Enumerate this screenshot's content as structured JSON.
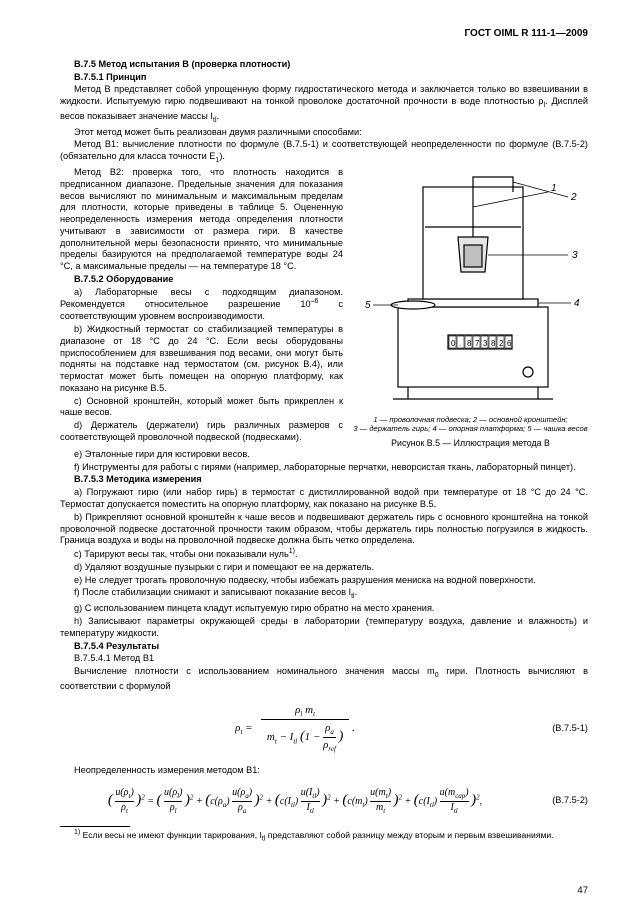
{
  "header": "ГОСТ OIML R 111-1—2009",
  "s1_title": "В.7.5 Метод испытания В (проверка плотности)",
  "s1_1_title": "В.7.5.1 Принцип",
  "p1": "Метод В представляет собой упрощенную форму гидростатического метода и заключается только во взвешивании в жидкости. Испытуемую гирю подвешивают на тонкой проволоке достаточной прочности в воде плотностью ρ",
  "p1_sub": "l",
  "p1_tail": ". Дисплей весов показывает значение массы I",
  "p1_sub2": "tl",
  "p1_end": ".",
  "p2": "Этот метод может быть реализован двумя различными способами:",
  "p3a": "Метод В1: вычисление плотности по формуле (В.7.5-1) и соответствующей неопределенности по формуле (В.7.5-2) (обязательно для класса точности E",
  "p3b": "1",
  "p3c": ").",
  "col_p1": "Метод В2: проверка того, что плотность находится в предписанном диапазоне. Предельные значения для показания весов вычисляют по минимальным и максимальным пределам для плотности, которые приведены в таблице 5. Оцененную неопределенность измерения метода определения плотности учитывают в зависимости от размера гири. В качестве дополнительной меры безопасности принято, что минимальные пределы базируются на предполагаемой температуре воды 24 °С, а максимальные пределы — на температуре 18 °С.",
  "s1_2_title": "В.7.5.2 Оборудование",
  "eq_a": "a) Лабораторные весы с подходящим диапазоном. Рекомендуется относительное разрешение 10",
  "eq_a_sup": "–6",
  "eq_a_tail": " с соответствующим уровнем воспроизводимости.",
  "eq_b": "b) Жидкостный термостат со стабилизацией температуры в диапазоне от 18 °С до 24 °С. Если весы оборудованы приспособлением для взвешивания под весами, они могут быть подняты на подставке над термостатом (см. рисунок В.4), или термостат может быть помещен на опорную платформу, как показано на рисунке В.5.",
  "eq_c": "c) Основной кронштейн, который может быть прикреплен к чаше весов.",
  "eq_d": "d) Держатель (держатели) гирь различных размеров с соответствующей проволочной подвеской (подвесками).",
  "eq_e": "e) Эталонные гири для юстировки весов.",
  "eq_f": "f) Инструменты для работы с гирями (например, лабораторные перчатки, неворсистая ткань, лабораторный пинцет).",
  "s1_3_title": "В.7.5.3 Методика измерения",
  "m_a": "a) Погружают гирю (или набор гирь) в термостат с дистиллированной водой при температуре от 18 °С до 24 °С. Термостат допускается поместить на опорную платформу, как показано на рисунке В.5.",
  "m_b": "b) Прикрепляют основной кронштейн к чаше весов и подвешивают держатель гирь с основного кронштейна на тонкой проволочной подвеске достаточной прочности таким образом, чтобы держатель гирь полностью погрузился в жидкость. Граница воздуха и воды на проволочной подвеске должна быть четко определена.",
  "m_c": "c) Тарируют весы так, чтобы они показывали нуль",
  "m_c_sup": "1)",
  "m_c_end": ".",
  "m_d": "d) Удаляют воздушные пузырьки с гири и помещают ее на держатель.",
  "m_e": "e) Не следует трогать проволочную подвеску, чтобы избежать разрушения мениска на водной поверхности.",
  "m_f": "f) После стабилизации снимают и записывают показание весов I",
  "m_f_sub": "tl",
  "m_f_end": ".",
  "m_g": "g) С использованием пинцета кладут испытуемую гирю обратно на место хранения.",
  "m_h": "h) Записывают параметры окружающей среды в лаборатории (температуру воздуха, давление и влажность) и температуру жидкости.",
  "s1_4_title": "В.7.5.4 Результаты",
  "s1_4_1_title": "В.7.5.4.1 Метод В1",
  "res_p": "Вычисление плотности с использованием номинального значения массы m",
  "res_sub": "0",
  "res_tail": " гири. Плотность вычисляют в соответствии с формулой",
  "formula1_num": "(В.7.5-1)",
  "uncert": "Неопределенность измерения методом В1:",
  "formula2_num": "(В.7.5-2)",
  "footnote_mark": "1)",
  "footnote_text": " Если весы не имеют функции тарирования, I",
  "footnote_sub": "tl",
  "footnote_tail": " представляют собой разницу между вторым и первым взвешиваниями.",
  "pagenum": "47",
  "fig": {
    "labels": {
      "n1": "1",
      "n2": "2",
      "n3": "3",
      "n4": "4",
      "n5": "5"
    },
    "display_digits": [
      "0",
      ".",
      "8",
      "7",
      "3",
      "8",
      "2",
      "6"
    ],
    "legend_line1": "1 — проволочная подвеска; 2 — основной кронштейн;",
    "legend_line2": "3 — держатель гирь; 4 — опорная платформа; 5 — чашка весов",
    "caption": "Рисунок В.5 — Иллюстрация метода В",
    "colors": {
      "stroke": "#000000",
      "fill_box": "#ffffff",
      "fill_grey": "#e5e5e5"
    }
  }
}
